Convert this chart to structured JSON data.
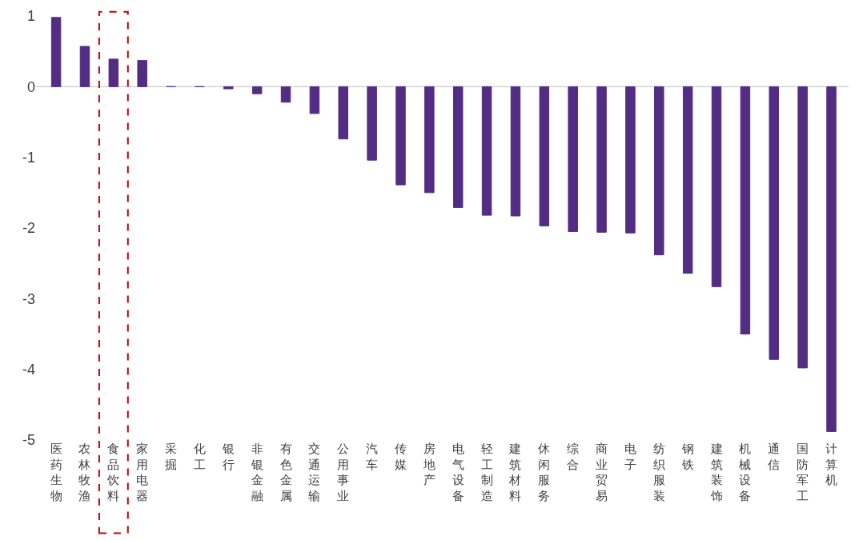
{
  "chart_data": {
    "type": "bar",
    "categories": [
      "医药生物",
      "农林牧渔",
      "食品饮料",
      "家用电器",
      "采掘",
      "化工",
      "银行",
      "非银金融",
      "有色金属",
      "交通运输",
      "公用事业",
      "汽车",
      "传媒",
      "房地产",
      "电气设备",
      "轻工制造",
      "建筑材料",
      "休闲服务",
      "综合",
      "商业贸易",
      "电子",
      "纺织服装",
      "钢铁",
      "建筑装饰",
      "机械设备",
      "通信",
      "国防军工",
      "计算机"
    ],
    "values": [
      0.98,
      0.57,
      0.39,
      0.37,
      0.0,
      0.0,
      -0.03,
      -0.1,
      -0.22,
      -0.38,
      -0.74,
      -1.04,
      -1.39,
      -1.5,
      -1.71,
      -1.82,
      -1.83,
      -1.97,
      -2.05,
      -2.06,
      -2.07,
      -2.38,
      -2.64,
      -2.83,
      -3.5,
      -3.86,
      -3.98,
      -4.88
    ],
    "color": "#532c83",
    "ylim": [
      -5,
      1
    ],
    "yticks": [
      -5,
      -4,
      -3,
      -2,
      -1,
      0,
      1
    ],
    "grid": false,
    "ref_lines": [
      {
        "axis": "y",
        "value": 0,
        "color": "#bfbfbf"
      }
    ]
  }
}
